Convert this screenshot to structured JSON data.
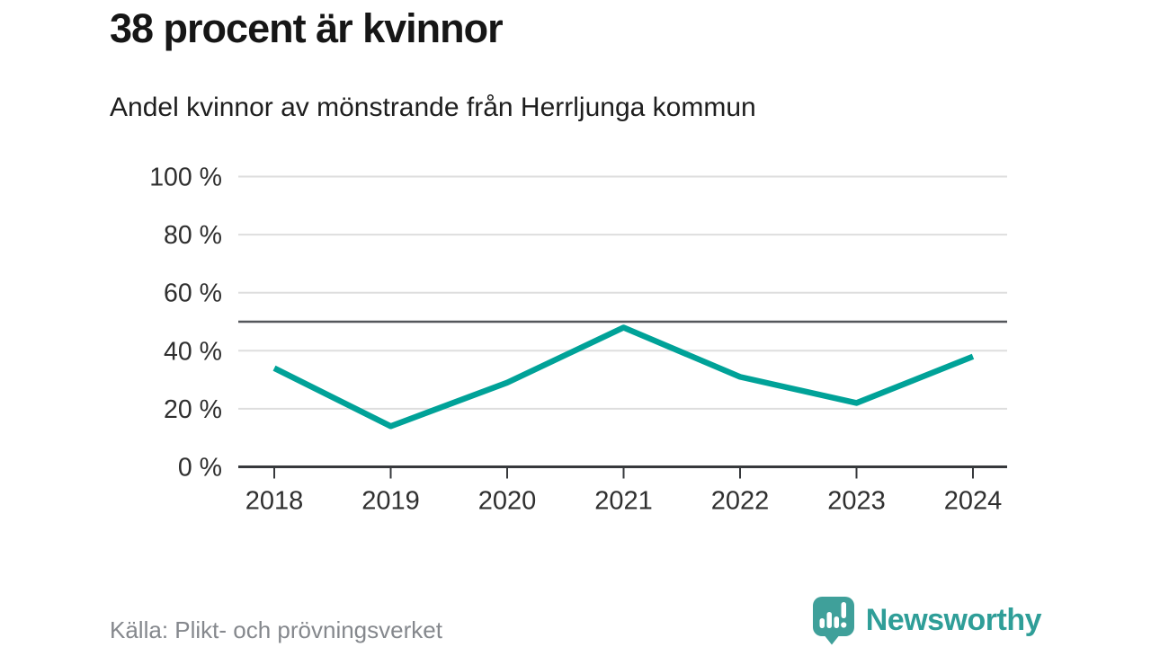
{
  "header": {
    "title": "38 procent är kvinnor",
    "subtitle": "Andel kvinnor av mönstrande från Herrljunga kommun"
  },
  "chart_data": {
    "type": "line",
    "title": "38 procent är kvinnor",
    "subtitle": "Andel kvinnor av mönstrande från Herrljunga kommun",
    "categories": [
      "2018",
      "2019",
      "2020",
      "2021",
      "2022",
      "2023",
      "2024"
    ],
    "series": [
      {
        "name": "Andel kvinnor",
        "values": [
          34,
          14,
          29,
          48,
          31,
          22,
          38
        ]
      }
    ],
    "unit": "%",
    "ylim": [
      0,
      100
    ],
    "yticks": [
      0,
      20,
      40,
      60,
      80,
      100
    ],
    "ytick_labels": [
      "0 %",
      "20 %",
      "40 %",
      "60 %",
      "80 %",
      "100 %"
    ],
    "reference_line": 50,
    "grid": true,
    "legend_position": "none",
    "colors": {
      "line": "#00a298",
      "reference": "#54575b",
      "grid": "#dedede",
      "axis": "#37393c",
      "tick_labels": "#2f2f2f"
    }
  },
  "footer": {
    "source": "Källa: Plikt- och prövningsverket",
    "brand_name": "Newsworthy",
    "brand_colors": {
      "icon": "#3fa09a",
      "icon_marks": "#ffffff",
      "text": "#2f9e98"
    }
  }
}
